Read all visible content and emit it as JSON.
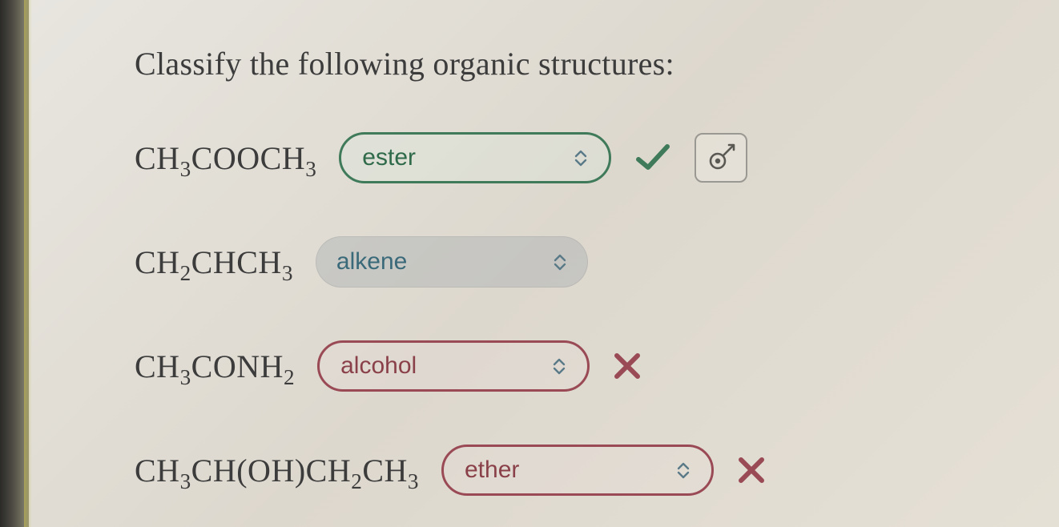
{
  "prompt": "Classify the following organic structures:",
  "colors": {
    "text": "#3c3c3c",
    "correct_border": "#3f7a5a",
    "incorrect_border": "#9a4a55",
    "neutral_bg": "rgba(170,175,178,0.45)",
    "spinner": "#5a7a88",
    "check": "#3f7a5a",
    "cross": "#9a4a55"
  },
  "rows": [
    {
      "formula_html": "CH<sub>3</sub>COOCH<sub>3</sub>",
      "selected": "ester",
      "state": "correct",
      "show_check": true,
      "show_cross": false,
      "show_target_btn": true
    },
    {
      "formula_html": "CH<sub>2</sub>CHCH<sub>3</sub>",
      "selected": "alkene",
      "state": "neutral",
      "show_check": false,
      "show_cross": false,
      "show_target_btn": false
    },
    {
      "formula_html": "CH<sub>3</sub>CONH<sub>2</sub>",
      "selected": "alcohol",
      "state": "incorrect",
      "show_check": false,
      "show_cross": true,
      "show_target_btn": false
    },
    {
      "formula_html": "CH<sub>3</sub>CH(OH)CH<sub>2</sub>CH<sub>3</sub>",
      "selected": "ether",
      "state": "incorrect",
      "show_check": false,
      "show_cross": true,
      "show_target_btn": false
    }
  ]
}
